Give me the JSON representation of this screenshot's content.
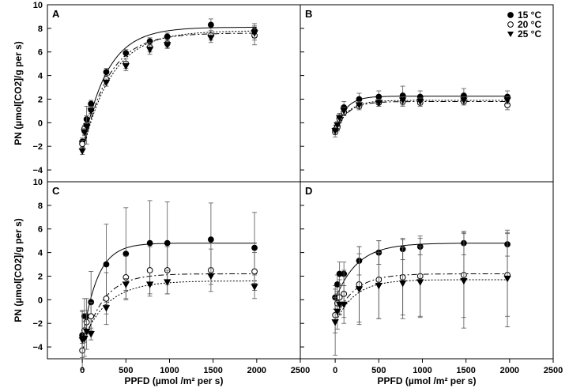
{
  "chart_data": {
    "type": "scatter",
    "xlabel": "PPFD (µmol /m² per s)",
    "ylabel": "PN (µmol[CO2]/g per s)",
    "xlim": [
      -400,
      2500
    ],
    "ylim": [
      -5,
      10
    ],
    "xticks": [
      0,
      500,
      1000,
      1500,
      2000,
      2500
    ],
    "yticks": [
      -4,
      -2,
      0,
      2,
      4,
      6,
      8,
      10
    ],
    "legend": {
      "placement": "top-right of panel B",
      "entries": [
        {
          "label": "15 °C",
          "marker": "filled-circle"
        },
        {
          "label": "20 °C",
          "marker": "open-circle"
        },
        {
          "label": "25 °C",
          "marker": "filled-triangle-down"
        }
      ]
    },
    "panels": [
      {
        "label": "A",
        "series": [
          {
            "temp": "15",
            "x": [
              0,
              25,
              50,
              100,
              275,
              500,
              775,
              975,
              1475,
              1975
            ],
            "y": [
              -1.6,
              -0.7,
              0.3,
              1.6,
              4.3,
              5.9,
              6.9,
              7.3,
              8.3,
              7.8
            ],
            "err": [
              0.3,
              0.3,
              0.3,
              0.3,
              0.3,
              0.3,
              0.3,
              0.3,
              0.5,
              0.6
            ],
            "fit": [
              -2.4,
              8.1,
              0.0036
            ]
          },
          {
            "temp": "20",
            "x": [
              0,
              25,
              50,
              100,
              275,
              500,
              775,
              975,
              1475,
              1975
            ],
            "y": [
              -1.8,
              -0.5,
              -0.2,
              1.1,
              3.7,
              5.0,
              6.4,
              6.7,
              7.4,
              7.4
            ],
            "err": [
              0.3,
              0.3,
              1.6,
              0.3,
              0.3,
              0.4,
              0.4,
              0.3,
              0.4,
              0.8
            ],
            "fit": [
              -2.6,
              7.6,
              0.0034
            ]
          },
          {
            "temp": "25",
            "x": [
              0,
              25,
              50,
              100,
              275,
              500,
              775,
              975,
              1475,
              1975
            ],
            "y": [
              -2.4,
              -0.8,
              -0.3,
              1.0,
              3.4,
              4.8,
              6.2,
              6.6,
              7.2,
              7.6
            ],
            "err": [
              0.3,
              0.3,
              0.3,
              0.3,
              0.3,
              0.4,
              0.4,
              0.3,
              0.4,
              0.6
            ],
            "fit": [
              -2.6,
              7.8,
              0.003
            ]
          }
        ]
      },
      {
        "label": "B",
        "series": [
          {
            "temp": "15",
            "x": [
              0,
              25,
              50,
              100,
              275,
              500,
              775,
              975,
              1475,
              1975
            ],
            "y": [
              -0.6,
              -0.3,
              0.4,
              1.3,
              2.0,
              2.2,
              2.3,
              2.2,
              2.3,
              2.2
            ],
            "err": [
              0.4,
              0.3,
              0.4,
              0.5,
              0.5,
              0.5,
              0.8,
              0.5,
              0.6,
              0.5
            ],
            "fit": [
              -0.8,
              2.25,
              0.0085
            ]
          },
          {
            "temp": "20",
            "x": [
              0,
              25,
              50,
              100,
              275,
              500,
              775,
              975,
              1475,
              1975
            ],
            "y": [
              -0.8,
              -0.4,
              0.3,
              0.9,
              1.4,
              1.7,
              1.8,
              1.7,
              1.8,
              1.5
            ],
            "err": [
              0.4,
              0.3,
              0.3,
              0.3,
              0.3,
              0.3,
              0.4,
              0.3,
              0.3,
              0.4
            ],
            "fit": [
              -0.8,
              1.8,
              0.007
            ]
          },
          {
            "temp": "25",
            "x": [
              0,
              25,
              50,
              100,
              275,
              500,
              775,
              975,
              1475,
              1975
            ],
            "y": [
              -0.7,
              -0.2,
              0.4,
              1.0,
              1.5,
              1.7,
              1.9,
              1.8,
              1.9,
              1.9
            ],
            "err": [
              0.3,
              0.3,
              0.3,
              0.3,
              0.3,
              0.3,
              0.3,
              0.3,
              0.3,
              0.3
            ],
            "fit": [
              -0.8,
              1.9,
              0.007
            ]
          }
        ]
      },
      {
        "label": "C",
        "series": [
          {
            "temp": "15",
            "x": [
              0,
              25,
              50,
              100,
              275,
              500,
              775,
              975,
              1475,
              1975
            ],
            "y": [
              -3.0,
              -1.4,
              -1.4,
              -0.2,
              3.0,
              3.9,
              4.8,
              4.8,
              5.1,
              4.4
            ],
            "err": [
              2.0,
              1.5,
              1.5,
              2.6,
              3.4,
              3.9,
              3.6,
              3.5,
              3.1,
              3.0
            ],
            "fit": [
              -3.6,
              4.8,
              0.006
            ]
          },
          {
            "temp": "20",
            "x": [
              0,
              25,
              50,
              100,
              275,
              500,
              775,
              975,
              1475,
              1975
            ],
            "y": [
              -4.3,
              -2.6,
              -1.9,
              -1.4,
              0.1,
              1.9,
              2.5,
              2.5,
              2.5,
              2.4
            ],
            "err": [
              0.6,
              1.0,
              1.0,
              1.2,
              2.2,
              1.8,
              2.0,
              2.0,
              1.8,
              1.6
            ],
            "fit": [
              -4.4,
              2.2,
              0.0045
            ]
          },
          {
            "temp": "25",
            "x": [
              0,
              25,
              50,
              100,
              275,
              500,
              775,
              975,
              1475,
              1975
            ],
            "y": [
              -3.4,
              -3.3,
              -2.7,
              -2.9,
              -0.7,
              1.3,
              1.3,
              1.5,
              2.0,
              1.1
            ],
            "err": [
              2.5,
              1.5,
              1.5,
              0.5,
              0.5,
              0.5,
              1.0,
              1.0,
              0.7,
              1.0
            ],
            "fit": [
              -3.6,
              1.6,
              0.0035
            ]
          }
        ]
      },
      {
        "label": "D",
        "series": [
          {
            "temp": "15",
            "x": [
              0,
              25,
              50,
              100,
              275,
              500,
              775,
              975,
              1475,
              1975
            ],
            "y": [
              0.2,
              1.3,
              2.2,
              2.2,
              3.3,
              4.0,
              4.3,
              4.5,
              4.8,
              4.7
            ],
            "err": [
              1.0,
              0.8,
              1.0,
              1.0,
              1.2,
              1.0,
              0.9,
              0.7,
              1.0,
              1.0
            ],
            "fit": [
              0.0,
              4.8,
              0.004
            ]
          },
          {
            "temp": "20",
            "x": [
              0,
              25,
              50,
              100,
              275,
              500,
              775,
              975,
              1475,
              1975
            ],
            "y": [
              -1.3,
              -0.3,
              0.2,
              0.5,
              1.3,
              1.7,
              1.9,
              2.0,
              2.1,
              2.1
            ],
            "err": [
              1.5,
              1.0,
              1.5,
              2.0,
              3.2,
              3.3,
              3.2,
              3.4,
              3.6,
              3.5
            ],
            "fit": [
              -1.6,
              2.2,
              0.0045
            ]
          },
          {
            "temp": "25",
            "x": [
              0,
              25,
              50,
              100,
              275,
              500,
              775,
              975,
              1475,
              1975
            ],
            "y": [
              -1.9,
              -1.0,
              -0.4,
              -0.4,
              0.9,
              1.2,
              1.4,
              1.5,
              1.6,
              1.8
            ],
            "err": [
              2.8,
              1.5,
              0.8,
              1.6,
              3.0,
              2.8,
              3.0,
              3.0,
              4.0,
              4.1
            ],
            "fit": [
              -2.0,
              1.7,
              0.0045
            ]
          }
        ]
      }
    ]
  }
}
